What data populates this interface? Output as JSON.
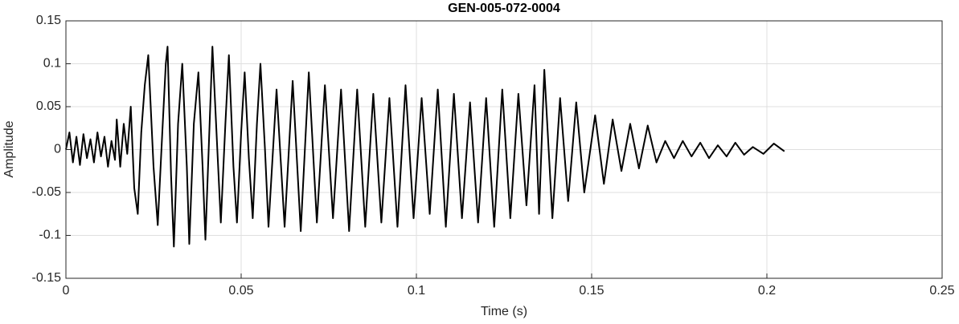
{
  "chart_data": {
    "type": "line",
    "title": "GEN-005-072-0004",
    "xlabel": "Time (s)",
    "ylabel": "Amplitude",
    "xlim": [
      0,
      0.25
    ],
    "xticks": [
      0,
      0.05,
      0.1,
      0.15,
      0.2,
      0.25
    ],
    "ylim": [
      -0.15,
      0.15
    ],
    "yticks": [
      -0.15,
      -0.1,
      -0.05,
      0,
      0.05,
      0.1,
      0.15
    ],
    "grid": true,
    "series": [
      {
        "color": "#000000",
        "x": [
          0,
          0.001,
          0.002,
          0.003,
          0.004,
          0.005,
          0.006,
          0.007,
          0.008,
          0.009,
          0.01,
          0.011,
          0.012,
          0.013,
          0.014,
          0.0145,
          0.0155,
          0.0165,
          0.0175,
          0.0185,
          0.0195,
          0.0205,
          0.0215,
          0.0225,
          0.0235,
          0.025,
          0.0262,
          0.0275,
          0.0285,
          0.029,
          0.03,
          0.0308,
          0.032,
          0.0332,
          0.0345,
          0.0352,
          0.0365,
          0.0378,
          0.039,
          0.0398,
          0.041,
          0.0418,
          0.0432,
          0.0442,
          0.0455,
          0.0465,
          0.0478,
          0.0488,
          0.05,
          0.051,
          0.0522,
          0.0533,
          0.0545,
          0.0555,
          0.0568,
          0.0578,
          0.0601,
          0.0624,
          0.0647,
          0.067,
          0.0693,
          0.0716,
          0.0739,
          0.0762,
          0.0785,
          0.0808,
          0.0831,
          0.0854,
          0.0877,
          0.09,
          0.0923,
          0.0946,
          0.0969,
          0.0992,
          0.1015,
          0.1038,
          0.1061,
          0.1084,
          0.1107,
          0.113,
          0.1153,
          0.1176,
          0.1199,
          0.1222,
          0.1245,
          0.1268,
          0.1291,
          0.1314,
          0.1337,
          0.135,
          0.1365,
          0.1388,
          0.141,
          0.1433,
          0.1456,
          0.1479,
          0.151,
          0.1535,
          0.156,
          0.1585,
          0.161,
          0.1635,
          0.166,
          0.1685,
          0.171,
          0.1735,
          0.176,
          0.1785,
          0.181,
          0.1835,
          0.186,
          0.1885,
          0.191,
          0.1935,
          0.196,
          0.199,
          0.202,
          0.205
        ],
        "values": [
          0,
          0.02,
          -0.015,
          0.015,
          -0.018,
          0.018,
          -0.01,
          0.012,
          -0.015,
          0.02,
          -0.008,
          0.015,
          -0.02,
          0.01,
          -0.012,
          0.035,
          -0.02,
          0.03,
          -0.005,
          0.05,
          -0.045,
          -0.075,
          0.02,
          0.075,
          0.11,
          -0.02,
          -0.088,
          0.02,
          0.1,
          0.12,
          -0.03,
          -0.113,
          0.03,
          0.1,
          -0.02,
          -0.11,
          0.03,
          0.09,
          -0.02,
          -0.105,
          0.03,
          0.12,
          0,
          -0.085,
          0.03,
          0.11,
          -0.02,
          -0.085,
          0.02,
          0.09,
          -0.01,
          -0.08,
          0.03,
          0.1,
          0,
          -0.09,
          0.07,
          -0.09,
          0.08,
          -0.095,
          0.09,
          -0.085,
          0.075,
          -0.08,
          0.07,
          -0.095,
          0.07,
          -0.09,
          0.065,
          -0.085,
          0.06,
          -0.09,
          0.075,
          -0.08,
          0.06,
          -0.075,
          0.07,
          -0.09,
          0.065,
          -0.08,
          0.055,
          -0.085,
          0.06,
          -0.09,
          0.07,
          -0.08,
          0.065,
          -0.065,
          0.075,
          -0.075,
          0.093,
          -0.08,
          0.06,
          -0.06,
          0.055,
          -0.05,
          0.04,
          -0.04,
          0.035,
          -0.025,
          0.03,
          -0.022,
          0.028,
          -0.015,
          0.01,
          -0.01,
          0.01,
          -0.008,
          0.008,
          -0.01,
          0.005,
          -0.008,
          0.008,
          -0.006,
          0.003,
          -0.005,
          0.007,
          -0.002
        ]
      }
    ]
  }
}
